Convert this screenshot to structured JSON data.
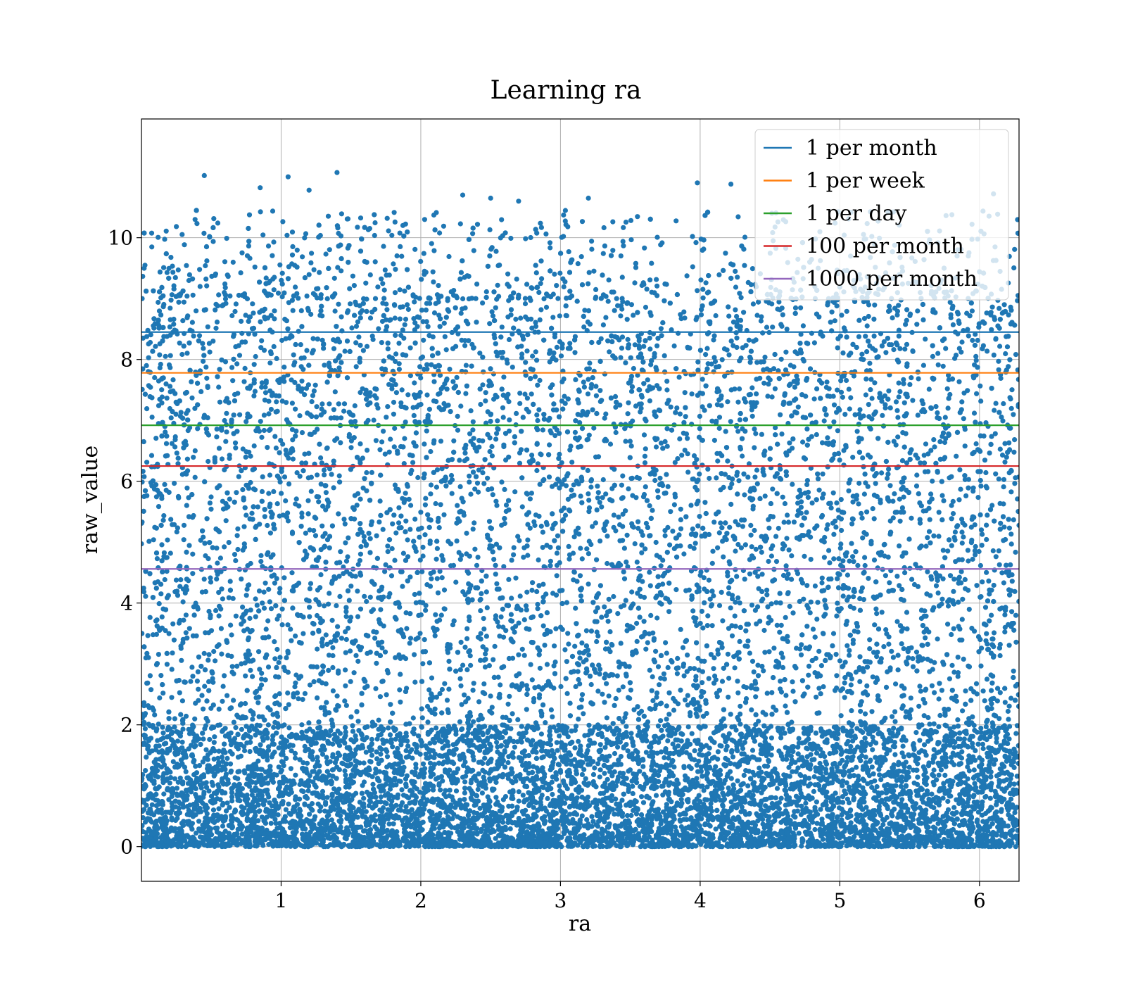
{
  "colors": {
    "scatter": "#1f77b4",
    "grid": "#b0b0b0",
    "axes": "#000000",
    "legend_border": "#cccccc"
  },
  "chart_data": {
    "type": "scatter",
    "title": "Learning ra",
    "xlabel": "ra",
    "ylabel": "raw_value",
    "xlim": [
      0.0,
      6.283
    ],
    "ylim": [
      -0.57,
      11.95
    ],
    "xticks": [
      1,
      2,
      3,
      4,
      5,
      6
    ],
    "xtick_labels": [
      "1",
      "2",
      "3",
      "4",
      "5",
      "6"
    ],
    "yticks": [
      0,
      2,
      4,
      6,
      8,
      10
    ],
    "ytick_labels": [
      "0",
      "2",
      "4",
      "6",
      "8",
      "10"
    ],
    "grid": true,
    "legend_position": "top-right",
    "scatter": {
      "x_range": [
        0.0,
        6.283
      ],
      "y_range": [
        0.0,
        11.1
      ],
      "approx_points": 15000,
      "density": "heaviest near 0–2, thinning above 9, sparse to ~11.1",
      "sample_outliers": [
        {
          "x": 0.45,
          "y": 11.02
        },
        {
          "x": 1.05,
          "y": 11.0
        },
        {
          "x": 1.4,
          "y": 11.07
        },
        {
          "x": 1.2,
          "y": 10.78
        },
        {
          "x": 0.85,
          "y": 10.82
        },
        {
          "x": 2.3,
          "y": 10.7
        },
        {
          "x": 2.5,
          "y": 10.65
        },
        {
          "x": 2.7,
          "y": 10.6
        },
        {
          "x": 3.2,
          "y": 10.65
        },
        {
          "x": 3.98,
          "y": 10.9
        },
        {
          "x": 4.22,
          "y": 10.88
        },
        {
          "x": 6.1,
          "y": 10.72
        }
      ]
    },
    "lines": [
      {
        "name": "1 per month",
        "y": 8.45,
        "color": "#1f77b4"
      },
      {
        "name": "1 per week",
        "y": 7.78,
        "color": "#ff7f0e"
      },
      {
        "name": "1 per day",
        "y": 6.92,
        "color": "#2ca02c"
      },
      {
        "name": "100 per month",
        "y": 6.25,
        "color": "#d62728"
      },
      {
        "name": "1000 per month",
        "y": 4.56,
        "color": "#9467bd"
      }
    ]
  }
}
